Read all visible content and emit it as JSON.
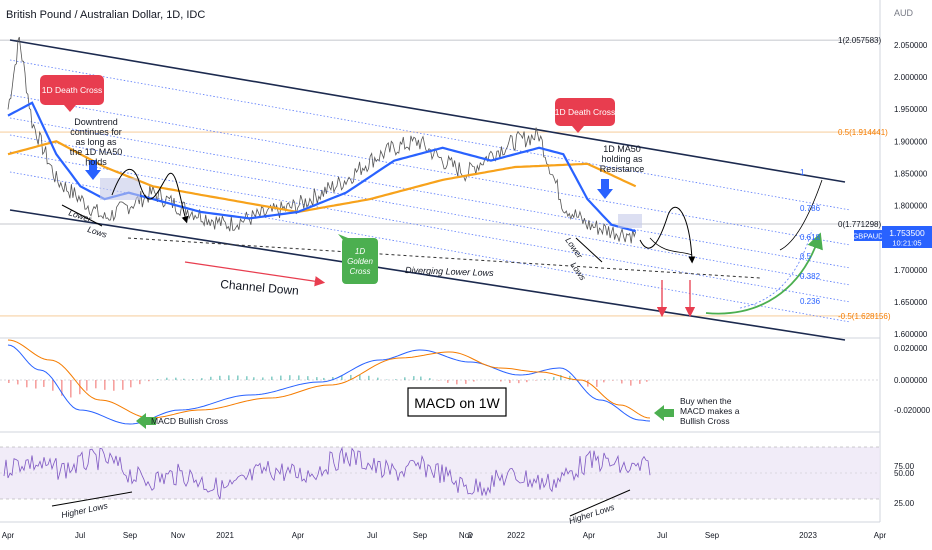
{
  "chart_data": {
    "type": "line",
    "title": "British Pound / Australian Dollar, 1D, IDC",
    "currency": "AUD",
    "symbol": "GBPAUD",
    "last_price": "1.753500",
    "countdown": "10:21:05",
    "x_ticks": [
      "Apr",
      "Jul",
      "Sep",
      "Nov",
      "2021",
      "Apr",
      "Jul",
      "Sep",
      "Nov",
      "2",
      "2022",
      "Apr",
      "Jul",
      "Sep",
      "2023",
      "Apr"
    ],
    "price_ticks": [
      "2.050000",
      "2.000000",
      "1.950000",
      "1.900000",
      "1.850000",
      "1.800000",
      "1.700000",
      "1.650000",
      "1.600000"
    ],
    "macd_ticks": [
      "0.020000",
      "0.000000",
      "-0.020000"
    ],
    "rsi_ticks": [
      "75.00",
      "50.00",
      "25.00"
    ],
    "fib_levels": [
      {
        "label": "1(2.057583)",
        "value": 2.057583
      },
      {
        "label": "0.5(1.914441)",
        "value": 1.914441
      },
      {
        "label": "0(1.771298)",
        "value": 1.771298
      },
      {
        "label": "-0.5(1.628156)",
        "value": 1.628156
      }
    ],
    "channel_fib_labels": [
      "1",
      "0.786",
      "0.618",
      "0.5",
      "0.382",
      "0.236"
    ],
    "price_series": [
      [
        "2020-04",
        1.95
      ],
      [
        "2020-04-15",
        2.06
      ],
      [
        "2020-05",
        1.93
      ],
      [
        "2020-06",
        1.84
      ],
      [
        "2020-07",
        1.81
      ],
      [
        "2020-08",
        1.78
      ],
      [
        "2020-09",
        1.8
      ],
      [
        "2020-10",
        1.82
      ],
      [
        "2020-11",
        1.8
      ],
      [
        "2021-01",
        1.77
      ],
      [
        "2021-02",
        1.78
      ],
      [
        "2021-03",
        1.79
      ],
      [
        "2021-04",
        1.8
      ],
      [
        "2021-05",
        1.82
      ],
      [
        "2021-06",
        1.84
      ],
      [
        "2021-07",
        1.87
      ],
      [
        "2021-08",
        1.89
      ],
      [
        "2021-09",
        1.9
      ],
      [
        "2021-10",
        1.87
      ],
      [
        "2021-11",
        1.85
      ],
      [
        "2021-12",
        1.88
      ],
      [
        "2022-01",
        1.9
      ],
      [
        "2022-02",
        1.91
      ],
      [
        "2022-03",
        1.8
      ],
      [
        "2022-04",
        1.77
      ],
      [
        "2022-05",
        1.76
      ],
      [
        "2022-06",
        1.7535
      ]
    ],
    "ma50_series": [
      [
        "2020-04",
        1.94
      ],
      [
        "2020-05",
        1.96
      ],
      [
        "2020-06",
        1.88
      ],
      [
        "2020-07",
        1.83
      ],
      [
        "2020-08",
        1.81
      ],
      [
        "2020-09",
        1.82
      ],
      [
        "2020-10",
        1.81
      ],
      [
        "2020-12",
        1.79
      ],
      [
        "2021-02",
        1.78
      ],
      [
        "2021-04",
        1.79
      ],
      [
        "2021-06",
        1.82
      ],
      [
        "2021-08",
        1.87
      ],
      [
        "2021-10",
        1.89
      ],
      [
        "2021-12",
        1.87
      ],
      [
        "2022-02",
        1.89
      ],
      [
        "2022-03",
        1.88
      ],
      [
        "2022-04",
        1.81
      ],
      [
        "2022-05",
        1.77
      ],
      [
        "2022-06",
        1.76
      ]
    ],
    "ma200_series": [
      [
        "2020-04",
        1.88
      ],
      [
        "2020-06",
        1.9
      ],
      [
        "2020-08",
        1.86
      ],
      [
        "2020-10",
        1.83
      ],
      [
        "2021-01",
        1.81
      ],
      [
        "2021-04",
        1.79
      ],
      [
        "2021-07",
        1.81
      ],
      [
        "2021-10",
        1.84
      ],
      [
        "2022-01",
        1.86
      ],
      [
        "2022-04",
        1.865
      ],
      [
        "2022-06",
        1.83
      ]
    ],
    "annotations": {
      "death_cross_1": "1D Death Cross",
      "death_cross_2": "1D Death Cross",
      "downtrend_note": "Downtrend continues for as long as the 1D MA50 holds",
      "golden_cross": "1D Golden Cross",
      "ma50_note": "1D MA50 holding as Resistance",
      "lower_lows_1": "Lower Lows",
      "lower_lows_2": "Lower Lows",
      "diverging": "Diverging Lower Lows",
      "channel_down": "Channel Down",
      "macd_title": "MACD on 1W",
      "macd_cross": "MACD Bullish Cross",
      "macd_buy": "Buy when the MACD makes a Bullish Cross",
      "higher_lows_1": "Higher Lows",
      "higher_lows_2": "Higher Lows"
    },
    "colors": {
      "ma50": "#2962ff",
      "ma200": "#f7a21b",
      "price": "#444444",
      "fib_line": "#f5c58b",
      "channel": "#1c2a4f",
      "death_cross": "#e83d4f",
      "golden_cross": "#4caf50",
      "arrow_blue": "#2962ff",
      "arrow_red": "#e83d4f",
      "rsi": "#7e57c2",
      "macd": "#2962ff",
      "signal": "#f57c00"
    }
  }
}
